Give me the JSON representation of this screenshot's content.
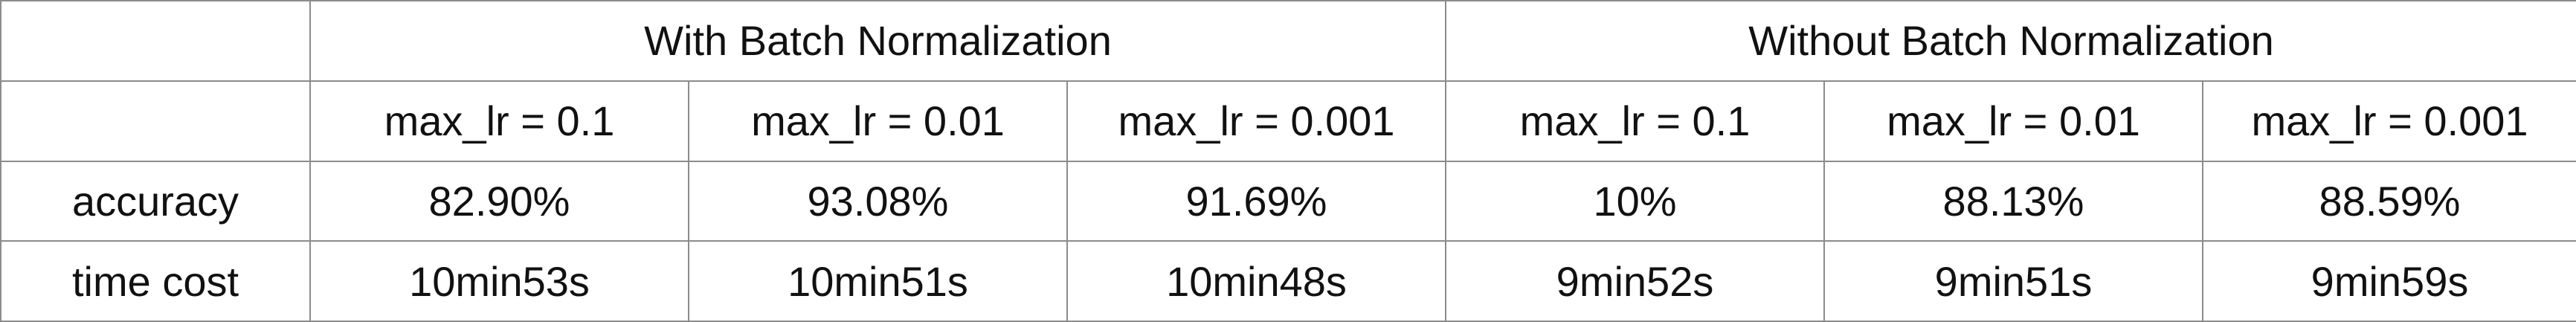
{
  "table": {
    "groups": [
      "With Batch Normalization",
      "Without Batch Normalization"
    ],
    "settings": [
      "max_lr = 0.1",
      "max_lr = 0.01",
      "max_lr = 0.001",
      "max_lr = 0.1",
      "max_lr = 0.01",
      "max_lr = 0.001"
    ],
    "rows": [
      {
        "label": "accuracy",
        "values": [
          "82.90%",
          "93.08%",
          "91.69%",
          "10%",
          "88.13%",
          "88.59%"
        ]
      },
      {
        "label": "time cost",
        "values": [
          "10min53s",
          "10min51s",
          "10min48s",
          "9min52s",
          "9min51s",
          "9min59s"
        ]
      }
    ]
  }
}
